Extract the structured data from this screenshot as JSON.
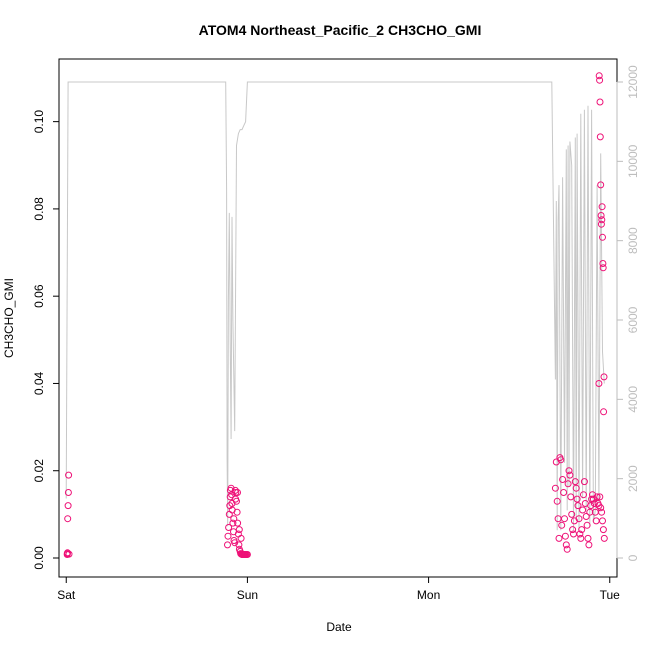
{
  "chart_data": {
    "type": "scatter",
    "title": "ATOM4 Northeast_Pacific_2 CH3CHO_GMI",
    "xlabel": "Date",
    "ylabel": "CH3CHO_GMI",
    "x_ticks": [
      {
        "label": "Sat",
        "value": 0
      },
      {
        "label": "Sun",
        "value": 1
      },
      {
        "label": "Mon",
        "value": 2
      },
      {
        "label": "Tue",
        "value": 3
      }
    ],
    "xlim": [
      -0.04,
      3.04
    ],
    "ylim": [
      0,
      0.11
    ],
    "y_ticks": [
      0.0,
      0.02,
      0.04,
      0.06,
      0.08,
      0.1
    ],
    "y_tick_labels": [
      "0.00",
      "0.02",
      "0.04",
      "0.06",
      "0.08",
      "0.10"
    ],
    "y2lim": [
      0,
      12000
    ],
    "y2_ticks": [
      0,
      2000,
      4000,
      6000,
      8000,
      10000,
      12000
    ],
    "y2_tick_labels": [
      "0",
      "2000",
      "4000",
      "6000",
      "8000",
      "10000",
      "12000"
    ],
    "grid": false,
    "colors": {
      "points": "#ee1177",
      "altitude_line": "#c8c8c8",
      "axis": "#000000",
      "right_axis": "#bdbdbd"
    },
    "series": [
      {
        "values_x": [
          0.005,
          0.006,
          0.007,
          0.008,
          0.01,
          0.012,
          0.013,
          0.015,
          0.89,
          0.893,
          0.896,
          0.9,
          0.903,
          0.906,
          0.91,
          0.913,
          0.916,
          0.92,
          0.923,
          0.926,
          0.93,
          0.933,
          0.936,
          0.94,
          0.943,
          0.946,
          0.95,
          0.953,
          0.956,
          0.96,
          0.963,
          0.966,
          0.97,
          0.973,
          0.976,
          0.98,
          0.983,
          0.986,
          0.99,
          0.995,
          1.0,
          0.905,
          0.915,
          0.925,
          0.935,
          0.945,
          0.955,
          0.965,
          2.7,
          2.705,
          2.71,
          2.715,
          2.72,
          2.725,
          2.73,
          2.735,
          2.74,
          2.745,
          2.75,
          2.755,
          2.76,
          2.765,
          2.77,
          2.775,
          2.78,
          2.785,
          2.79,
          2.795,
          2.8,
          2.805,
          2.81,
          2.815,
          2.82,
          2.825,
          2.83,
          2.835,
          2.84,
          2.845,
          2.85,
          2.855,
          2.86,
          2.865,
          2.87,
          2.875,
          2.88,
          2.885,
          2.89,
          2.895,
          2.9,
          2.905,
          2.91,
          2.915,
          2.92,
          2.925,
          2.93,
          2.935,
          2.94,
          2.945,
          2.95,
          2.955,
          2.96,
          2.965,
          2.97,
          2.94,
          2.942,
          2.944,
          2.946,
          2.948,
          2.95,
          2.952,
          2.954,
          2.956,
          2.958,
          2.96,
          2.962,
          2.964,
          2.966,
          2.968
        ],
        "values_y": [
          0.0008,
          0.001,
          0.0012,
          0.009,
          0.012,
          0.015,
          0.019,
          0.0009,
          0.003,
          0.005,
          0.007,
          0.01,
          0.012,
          0.0155,
          0.016,
          0.0145,
          0.011,
          0.008,
          0.006,
          0.004,
          0.0035,
          0.0155,
          0.015,
          0.013,
          0.0105,
          0.008,
          0.0055,
          0.003,
          0.002,
          0.0015,
          0.001,
          0.0009,
          0.0008,
          0.0008,
          0.0008,
          0.0008,
          0.0008,
          0.0008,
          0.0008,
          0.0008,
          0.0008,
          0.014,
          0.0125,
          0.009,
          0.0135,
          0.015,
          0.0065,
          0.0045,
          0.016,
          0.022,
          0.013,
          0.009,
          0.0045,
          0.023,
          0.0225,
          0.0075,
          0.018,
          0.015,
          0.009,
          0.005,
          0.003,
          0.002,
          0.017,
          0.02,
          0.019,
          0.014,
          0.01,
          0.0065,
          0.0055,
          0.0085,
          0.0175,
          0.016,
          0.0135,
          0.012,
          0.009,
          0.0055,
          0.0045,
          0.0065,
          0.011,
          0.0145,
          0.0175,
          0.0125,
          0.0095,
          0.0075,
          0.0045,
          0.003,
          0.0105,
          0.012,
          0.0135,
          0.0145,
          0.0135,
          0.0125,
          0.0105,
          0.0085,
          0.014,
          0.0125,
          0.012,
          0.014,
          0.0115,
          0.0105,
          0.0085,
          0.0065,
          0.0045,
          0.04,
          0.1105,
          0.1095,
          0.1045,
          0.0965,
          0.0855,
          0.0785,
          0.0765,
          0.0775,
          0.0805,
          0.0735,
          0.0675,
          0.0665,
          0.0335,
          0.0415
        ]
      }
    ],
    "altitude_line": {
      "x": [
        0,
        0.01,
        0.015,
        0.02,
        0.03,
        0.04,
        0.05,
        0.07,
        0.1,
        0.3,
        0.5,
        0.7,
        0.85,
        0.88,
        0.885,
        0.888,
        0.891,
        0.895,
        0.9,
        0.905,
        0.91,
        0.915,
        0.92,
        0.93,
        0.94,
        0.95,
        0.96,
        0.97,
        0.98,
        0.99,
        1.0,
        1.01,
        1.02,
        1.03,
        1.04,
        1.05,
        1.06,
        1.07,
        1.08,
        1.09,
        1.1,
        1.2,
        1.4,
        1.6,
        1.8,
        2.0,
        2.2,
        2.4,
        2.6,
        2.68,
        2.7,
        2.705,
        2.71,
        2.715,
        2.72,
        2.73,
        2.74,
        2.75,
        2.76,
        2.765,
        2.77,
        2.775,
        2.78,
        2.79,
        2.8,
        2.81,
        2.815,
        2.82,
        2.83,
        2.84,
        2.85,
        2.86,
        2.87,
        2.88,
        2.89,
        2.9,
        2.91,
        2.92,
        2.93,
        2.94,
        2.95,
        2.96,
        2.97
      ],
      "y": [
        1500,
        12000,
        12000,
        12000,
        12000,
        12000,
        12000,
        12000,
        12000,
        12000,
        12000,
        12000,
        12000,
        12000,
        9300,
        2500,
        800,
        6500,
        8700,
        5500,
        3000,
        8600,
        6000,
        3200,
        10400,
        10700,
        10800,
        10800,
        10900,
        11000,
        12000,
        12000,
        12000,
        12000,
        12000,
        12000,
        12000,
        12000,
        12000,
        12000,
        12000,
        12000,
        12000,
        12000,
        12000,
        12000,
        12000,
        12000,
        12000,
        12000,
        4500,
        9000,
        700,
        8500,
        9400,
        700,
        9600,
        2400,
        10300,
        1200,
        10400,
        1800,
        10500,
        9900,
        700,
        10600,
        1000,
        10700,
        700,
        11200,
        1500,
        11300,
        1200,
        11400,
        800,
        11300,
        900,
        1200,
        9400,
        1400,
        10200,
        5200,
        4400
      ]
    }
  }
}
